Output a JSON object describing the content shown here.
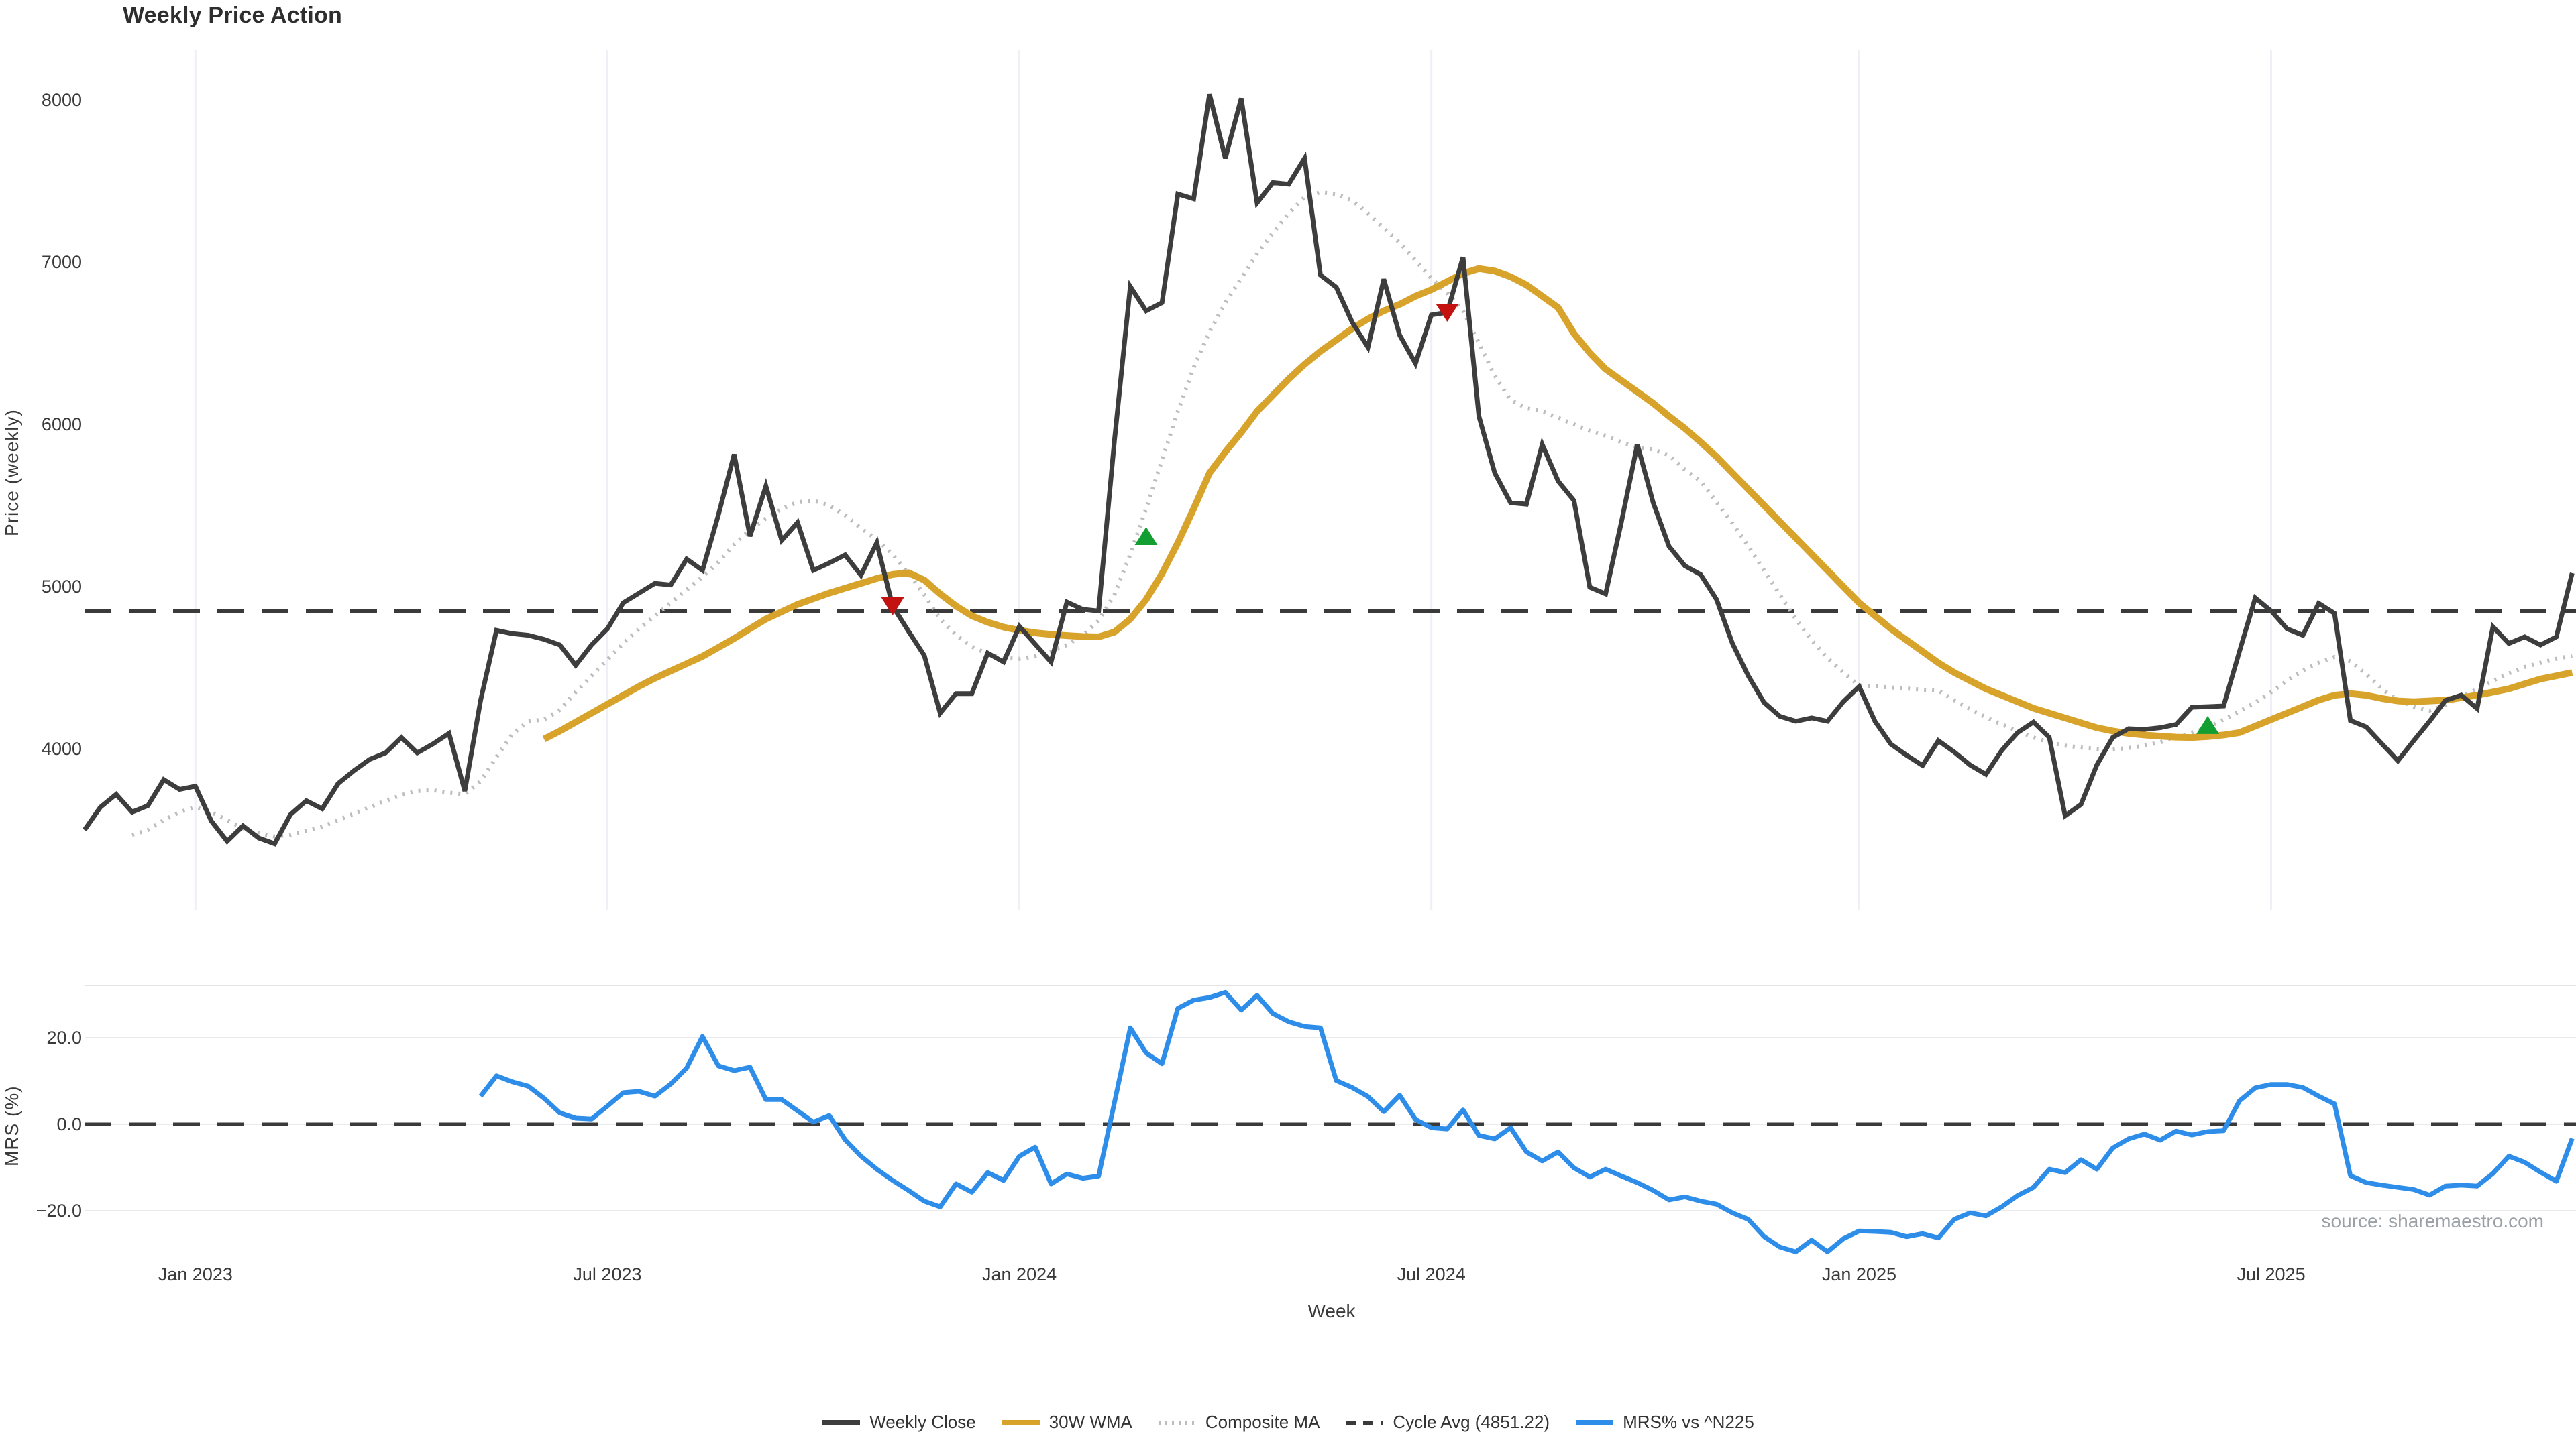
{
  "title": "Weekly Price Action",
  "xlabel": "Week",
  "source": "source: sharemaestro.com",
  "price_axis": {
    "label": "Price (weekly)",
    "ticks": [
      8000,
      7000,
      6000,
      5000,
      4000
    ]
  },
  "mrs_axis": {
    "label": "MRS (%)",
    "ticks": [
      {
        "v": 20,
        "label": "20.0"
      },
      {
        "v": 0,
        "label": "0.0"
      },
      {
        "v": -20,
        "label": "−20.0"
      }
    ]
  },
  "x_ticks": [
    {
      "week": 7,
      "label": "Jan 2023"
    },
    {
      "week": 33,
      "label": "Jul 2023"
    },
    {
      "week": 59,
      "label": "Jan 2024"
    },
    {
      "week": 85,
      "label": "Jul 2024"
    },
    {
      "week": 112,
      "label": "Jan 2025"
    },
    {
      "week": 138,
      "label": "Jul 2025"
    }
  ],
  "cycle_avg": 4851.22,
  "colors": {
    "close": "#3d3d3d",
    "wma": "#d7a32b",
    "composite": "#bdbdbd",
    "cycle": "#3a3a3a",
    "mrs": "#2d8de8",
    "buy": "#129e30",
    "sell": "#c41210",
    "grid": "#eef0f6",
    "panel_grid": "#e9e9ee",
    "panel_border": "#e3e3e8"
  },
  "legend": [
    {
      "label": "Weekly Close",
      "style": "solid",
      "color": "#3d3d3d"
    },
    {
      "label": "30W WMA",
      "style": "solid",
      "color": "#d7a32b"
    },
    {
      "label": "Composite MA",
      "style": "dotted",
      "color": "#bdbdbd"
    },
    {
      "label": "Cycle Avg (4851.22)",
      "style": "dashed",
      "color": "#3a3a3a"
    },
    {
      "label": "MRS% vs ^N225",
      "style": "solid",
      "color": "#2d8de8"
    }
  ],
  "chart_data": [
    {
      "type": "line",
      "panel": "price",
      "title": "Weekly Price Action",
      "ylabel": "Price (weekly)",
      "ylim": [
        3300,
        8200
      ],
      "grid": "vertical-only",
      "cycle_avg_line": 4851.22,
      "series": [
        {
          "name": "Weekly Close",
          "start_week": 0,
          "values": [
            3500,
            3640,
            3720,
            3610,
            3650,
            3810,
            3750,
            3770,
            3555,
            3430,
            3525,
            3450,
            3415,
            3595,
            3680,
            3630,
            3785,
            3865,
            3935,
            3975,
            4070,
            3975,
            4030,
            4095,
            3740,
            4300,
            4730,
            4710,
            4700,
            4675,
            4640,
            4515,
            4640,
            4740,
            4900,
            4960,
            5020,
            5010,
            5170,
            5100,
            5440,
            5815,
            5310,
            5620,
            5285,
            5395,
            5100,
            5145,
            5195,
            5070,
            5270,
            4880,
            4725,
            4575,
            4220,
            4340,
            4340,
            4590,
            4535,
            4755,
            4645,
            4535,
            4905,
            4860,
            4850,
            5900,
            6850,
            6700,
            6750,
            7420,
            7390,
            8035,
            7640,
            8010,
            7365,
            7490,
            7480,
            7640,
            6920,
            6845,
            6630,
            6475,
            6895,
            6550,
            6375,
            6675,
            6690,
            7030,
            6050,
            5700,
            5517,
            5508,
            5876,
            5650,
            5530,
            4996,
            4955,
            5400,
            5876,
            5517,
            5248,
            5128,
            5074,
            4920,
            4650,
            4450,
            4285,
            4200,
            4170,
            4190,
            4170,
            4290,
            4384,
            4169,
            4029,
            3960,
            3897,
            4050,
            3980,
            3900,
            3843,
            3990,
            4100,
            4165,
            4070,
            3587,
            3657,
            3900,
            4070,
            4124,
            4120,
            4130,
            4150,
            4256,
            4260,
            4264,
            4600,
            4930,
            4850,
            4740,
            4700,
            4897,
            4835,
            4175,
            4135,
            4030,
            3926,
            4050,
            4170,
            4298,
            4331,
            4248,
            4752,
            4649,
            4690,
            4640,
            4690,
            5083
          ]
        },
        {
          "name": "30W WMA",
          "start_week": 29,
          "values": [
            4060,
            4110,
            4165,
            4220,
            4275,
            4330,
            4385,
            4435,
            4480,
            4525,
            4570,
            4625,
            4680,
            4740,
            4800,
            4845,
            4890,
            4925,
            4960,
            4990,
            5020,
            5050,
            5075,
            5085,
            5040,
            4955,
            4880,
            4820,
            4780,
            4750,
            4730,
            4715,
            4705,
            4698,
            4692,
            4690,
            4720,
            4800,
            4920,
            5080,
            5270,
            5480,
            5700,
            5830,
            5950,
            6080,
            6180,
            6280,
            6370,
            6450,
            6520,
            6590,
            6650,
            6700,
            6740,
            6790,
            6830,
            6880,
            6930,
            6960,
            6945,
            6910,
            6860,
            6790,
            6720,
            6560,
            6440,
            6340,
            6270,
            6200,
            6130,
            6050,
            5975,
            5890,
            5800,
            5700,
            5600,
            5500,
            5400,
            5300,
            5200,
            5100,
            5000,
            4900,
            4820,
            4740,
            4670,
            4600,
            4530,
            4470,
            4420,
            4370,
            4330,
            4290,
            4250,
            4220,
            4190,
            4160,
            4130,
            4110,
            4095,
            4085,
            4078,
            4072,
            4070,
            4075,
            4085,
            4100,
            4140,
            4180,
            4220,
            4260,
            4300,
            4330,
            4340,
            4330,
            4310,
            4295,
            4290,
            4295,
            4300,
            4315,
            4330,
            4350,
            4370,
            4400,
            4430,
            4450,
            4470
          ]
        },
        {
          "name": "Composite MA",
          "start_week": 3,
          "values": [
            3470,
            3500,
            3560,
            3610,
            3640,
            3610,
            3560,
            3510,
            3480,
            3460,
            3470,
            3495,
            3520,
            3560,
            3600,
            3640,
            3680,
            3715,
            3740,
            3745,
            3730,
            3720,
            3800,
            3950,
            4090,
            4170,
            4180,
            4240,
            4350,
            4450,
            4550,
            4650,
            4740,
            4820,
            4900,
            4980,
            5060,
            5150,
            5260,
            5350,
            5420,
            5480,
            5520,
            5530,
            5500,
            5440,
            5360,
            5290,
            5200,
            5080,
            4950,
            4800,
            4700,
            4630,
            4585,
            4560,
            4555,
            4570,
            4600,
            4640,
            4700,
            4790,
            4950,
            5200,
            5480,
            5780,
            6080,
            6350,
            6570,
            6750,
            6900,
            7050,
            7180,
            7300,
            7400,
            7430,
            7420,
            7380,
            7300,
            7210,
            7120,
            7010,
            6900,
            6810,
            6700,
            6500,
            6300,
            6150,
            6100,
            6080,
            6040,
            6000,
            5960,
            5930,
            5890,
            5860,
            5845,
            5810,
            5720,
            5650,
            5520,
            5390,
            5250,
            5100,
            4950,
            4800,
            4670,
            4560,
            4470,
            4390,
            4385,
            4378,
            4372,
            4365,
            4359,
            4300,
            4245,
            4194,
            4150,
            4110,
            4070,
            4040,
            4020,
            4008,
            4000,
            3996,
            4005,
            4020,
            4040,
            4070,
            4100,
            4132,
            4180,
            4230,
            4285,
            4350,
            4420,
            4483,
            4530,
            4566,
            4540,
            4460,
            4368,
            4300,
            4260,
            4236,
            4270,
            4320,
            4368,
            4420,
            4465,
            4504,
            4530,
            4555,
            4574
          ]
        }
      ],
      "markers": {
        "buy": [
          {
            "week": 67,
            "price": 5310
          },
          {
            "week": 134,
            "price": 4145
          }
        ],
        "sell": [
          {
            "week": 51,
            "price": 4880
          },
          {
            "week": 86,
            "price": 6690
          }
        ]
      }
    },
    {
      "type": "line",
      "panel": "mrs",
      "ylabel": "MRS (%)",
      "ylim": [
        -32,
        32
      ],
      "zero_line": 0,
      "series": [
        {
          "name": "MRS% vs ^N225",
          "start_week": 25,
          "values": [
            6.5,
            11.2,
            9.8,
            8.8,
            6.0,
            2.6,
            1.4,
            1.2,
            4.2,
            7.3,
            7.6,
            6.5,
            9.3,
            13.0,
            20.3,
            13.5,
            12.4,
            13.2,
            5.7,
            5.7,
            3.1,
            0.5,
            2.0,
            -3.6,
            -7.4,
            -10.4,
            -13.0,
            -15.3,
            -17.8,
            -19.1,
            -13.8,
            -15.7,
            -11.2,
            -13.0,
            -7.4,
            -5.3,
            -13.8,
            -11.5,
            -12.5,
            -12.0,
            5.0,
            22.3,
            16.5,
            14.0,
            26.8,
            28.7,
            29.3,
            30.5,
            26.4,
            29.8,
            25.6,
            23.7,
            22.6,
            22.3,
            10.1,
            8.5,
            6.4,
            2.9,
            6.7,
            1.1,
            -0.8,
            -1.1,
            3.3,
            -2.6,
            -3.4,
            -0.8,
            -6.4,
            -8.5,
            -6.4,
            -10.1,
            -12.2,
            -10.4,
            -12.0,
            -13.5,
            -15.3,
            -17.5,
            -16.8,
            -17.8,
            -18.5,
            -20.5,
            -22.0,
            -26.0,
            -28.4,
            -29.5,
            -26.8,
            -29.5,
            -26.5,
            -24.7,
            -24.8,
            -25.0,
            -26.0,
            -25.3,
            -26.3,
            -22.0,
            -20.5,
            -21.2,
            -19.1,
            -16.5,
            -14.6,
            -10.4,
            -11.2,
            -8.2,
            -10.4,
            -5.5,
            -3.4,
            -2.3,
            -3.7,
            -1.6,
            -2.5,
            -1.7,
            -1.5,
            5.4,
            8.4,
            9.2,
            9.2,
            8.5,
            6.5,
            4.7,
            -11.9,
            -13.5,
            -14.1,
            -14.6,
            -15.1,
            -16.4,
            -14.3,
            -14.1,
            -14.3,
            -11.4,
            -7.4,
            -8.8,
            -11.1,
            -13.2,
            -3.3
          ]
        }
      ]
    }
  ]
}
